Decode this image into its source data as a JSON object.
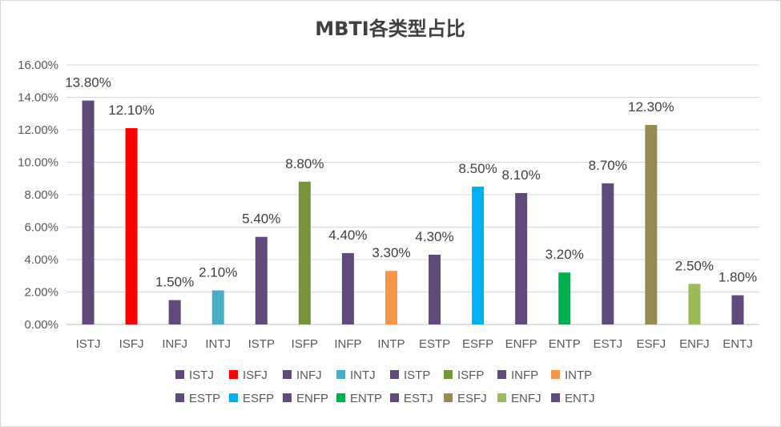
{
  "chart_data": {
    "type": "bar",
    "title": "MBTI各类型占比",
    "xlabel": "",
    "ylabel": "",
    "ylim": [
      0,
      0.16
    ],
    "ytick_step": 0.02,
    "yticks": [
      "0.00%",
      "2.00%",
      "4.00%",
      "6.00%",
      "8.00%",
      "10.00%",
      "12.00%",
      "14.00%",
      "16.00%"
    ],
    "grid": true,
    "legend_position": "bottom",
    "categories": [
      "ISTJ",
      "ISFJ",
      "INFJ",
      "INTJ",
      "ISTP",
      "ISFP",
      "INFP",
      "INTP",
      "ESTP",
      "ESFP",
      "ENFP",
      "ENTP",
      "ESTJ",
      "ESFJ",
      "ENFJ",
      "ENTJ"
    ],
    "values": [
      0.138,
      0.121,
      0.015,
      0.021,
      0.054,
      0.088,
      0.044,
      0.033,
      0.043,
      0.085,
      0.081,
      0.032,
      0.087,
      0.123,
      0.025,
      0.018
    ],
    "labels": [
      "13.80%",
      "12.10%",
      "1.50%",
      "2.10%",
      "5.40%",
      "8.80%",
      "4.40%",
      "3.30%",
      "4.30%",
      "8.50%",
      "8.10%",
      "3.20%",
      "8.70%",
      "12.30%",
      "2.50%",
      "1.80%"
    ],
    "colors": [
      "#604a7b",
      "#ff0000",
      "#604a7b",
      "#4bacc6",
      "#604a7b",
      "#77933c",
      "#604a7b",
      "#f79646",
      "#604a7b",
      "#00b0f0",
      "#604a7b",
      "#00b050",
      "#604a7b",
      "#948a54",
      "#9bbb59",
      "#604a7b"
    ],
    "legend": [
      "ISTJ",
      "ISFJ",
      "INFJ",
      "INTJ",
      "ISTP",
      "ISFP",
      "INFP",
      "INTP",
      "ESTP",
      "ESFP",
      "ENFP",
      "ENTP",
      "ESTJ",
      "ESFJ",
      "ENFJ",
      "ENTJ"
    ]
  }
}
